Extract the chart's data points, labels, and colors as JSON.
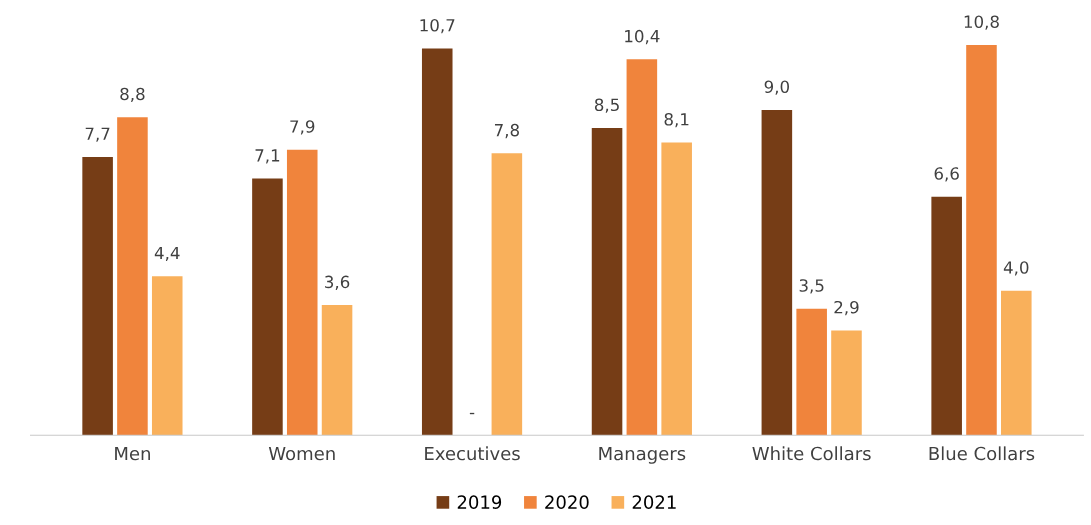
{
  "chart_data": {
    "type": "bar",
    "categories": [
      "Men",
      "Women",
      "Executives",
      "Managers",
      "White Collars",
      "Blue Collars"
    ],
    "series": [
      {
        "name": "2019",
        "color": "#763d16",
        "values": [
          7.7,
          7.1,
          10.7,
          8.5,
          9.0,
          6.6
        ],
        "value_labels": [
          "7,7",
          "7,1",
          "10,7",
          "8,5",
          "9,0",
          "6,6"
        ]
      },
      {
        "name": "2020",
        "color": "#f0843c",
        "values": [
          8.8,
          7.9,
          null,
          10.4,
          3.5,
          10.8
        ],
        "value_labels": [
          "8,8",
          "7,9",
          "-",
          "10,4",
          "3,5",
          "10,8"
        ]
      },
      {
        "name": "2021",
        "color": "#f9b05b",
        "values": [
          4.4,
          3.6,
          7.8,
          8.1,
          2.9,
          4.0
        ],
        "value_labels": [
          "4,4",
          "3,6",
          "7,8",
          "8,1",
          "2,9",
          "4,0"
        ]
      }
    ],
    "legend": "bottom",
    "grid": false
  }
}
